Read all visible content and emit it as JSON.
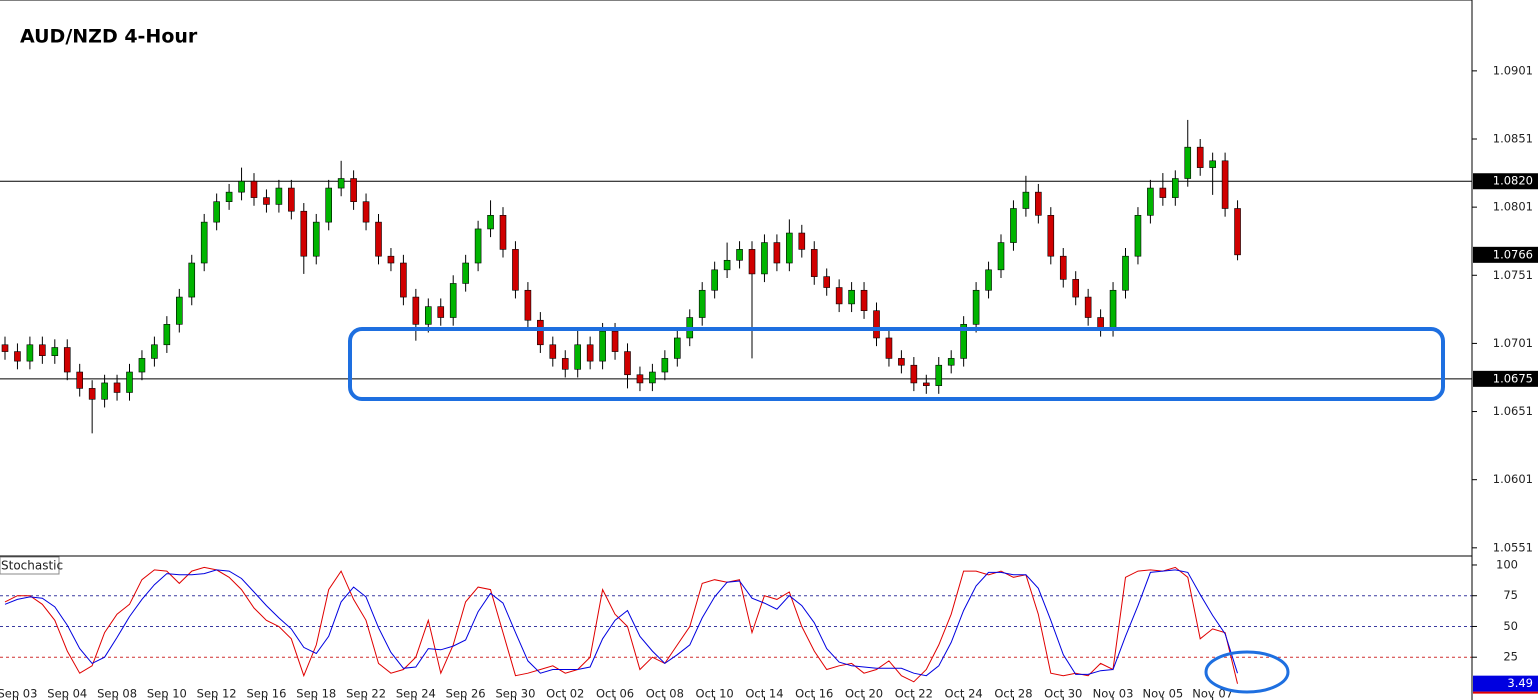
{
  "chart_data": [
    {
      "type": "candlestick",
      "title": "AUD/NZD 4-Hour",
      "categories": [
        null,
        "Sep 03",
        null,
        null,
        null,
        "Sep 04",
        null,
        null,
        null,
        "Sep 08",
        null,
        null,
        null,
        "Sep 10",
        null,
        null,
        null,
        "Sep 12",
        null,
        null,
        null,
        "Sep 16",
        null,
        null,
        null,
        "Sep 18",
        null,
        null,
        null,
        "Sep 22",
        null,
        null,
        null,
        "Sep 24",
        null,
        null,
        null,
        "Sep 26",
        null,
        null,
        null,
        "Sep 30",
        null,
        null,
        null,
        "Oct 02",
        null,
        null,
        null,
        "Oct 06",
        null,
        null,
        null,
        "Oct 08",
        null,
        null,
        null,
        "Oct 10",
        null,
        null,
        null,
        "Oct 14",
        null,
        null,
        null,
        "Oct 16",
        null,
        null,
        null,
        "Oct 20",
        null,
        null,
        null,
        "Oct 22",
        null,
        null,
        null,
        "Oct 24",
        null,
        null,
        null,
        "Oct 28",
        null,
        null,
        null,
        "Oct 30",
        null,
        null,
        null,
        "Nov 03",
        null,
        null,
        null,
        "Nov 05",
        null,
        null,
        null,
        "Nov 07",
        null,
        null
      ],
      "open": [
        1.07,
        1.0695,
        1.0688,
        1.07,
        1.0692,
        1.0698,
        1.068,
        1.0668,
        1.066,
        1.0672,
        1.0665,
        1.068,
        1.069,
        1.07,
        1.0715,
        1.0735,
        1.076,
        1.079,
        1.0805,
        1.0812,
        1.082,
        1.0808,
        1.0803,
        1.0815,
        1.0798,
        1.0765,
        1.079,
        1.0815,
        1.0822,
        1.0805,
        1.079,
        1.0765,
        1.076,
        1.0735,
        1.0715,
        1.0728,
        1.072,
        1.0745,
        1.076,
        1.0785,
        1.0795,
        1.077,
        1.074,
        1.0718,
        1.07,
        1.069,
        1.0682,
        1.07,
        1.0688,
        1.071,
        1.0695,
        1.0678,
        1.0672,
        1.068,
        1.069,
        1.0705,
        1.072,
        1.074,
        1.0755,
        1.0762,
        1.077,
        1.0752,
        1.0775,
        1.076,
        1.0782,
        1.077,
        1.075,
        1.0742,
        1.073,
        1.074,
        1.0725,
        1.0705,
        1.069,
        1.0685,
        1.0672,
        1.067,
        1.0685,
        1.069,
        1.0715,
        1.074,
        1.0755,
        1.0775,
        1.08,
        1.0812,
        1.0795,
        1.0765,
        1.0748,
        1.0735,
        1.072,
        1.0712,
        1.074,
        1.0765,
        1.0795,
        1.0815,
        1.0808,
        1.0822,
        1.0845,
        1.083,
        1.0835,
        1.08
      ],
      "high": [
        1.0706,
        1.0701,
        1.0706,
        1.0706,
        1.0704,
        1.0704,
        1.0686,
        1.0674,
        1.0678,
        1.0678,
        1.0686,
        1.0696,
        1.0706,
        1.0721,
        1.0741,
        1.0766,
        1.0796,
        1.0811,
        1.0818,
        1.083,
        1.0826,
        1.0814,
        1.0821,
        1.0821,
        1.0804,
        1.0796,
        1.0821,
        1.0835,
        1.0828,
        1.0811,
        1.0796,
        1.0771,
        1.0766,
        1.0741,
        1.0734,
        1.0734,
        1.0751,
        1.0766,
        1.0791,
        1.0806,
        1.0801,
        1.0776,
        1.0746,
        1.0724,
        1.0706,
        1.0696,
        1.0712,
        1.0706,
        1.0716,
        1.0716,
        1.0701,
        1.0684,
        1.0686,
        1.0696,
        1.0711,
        1.0726,
        1.0746,
        1.0761,
        1.0775,
        1.0776,
        1.0776,
        1.0781,
        1.0781,
        1.0792,
        1.0788,
        1.0776,
        1.0756,
        1.0748,
        1.0746,
        1.0746,
        1.0731,
        1.0711,
        1.0696,
        1.0691,
        1.0678,
        1.0691,
        1.0696,
        1.0721,
        1.0746,
        1.0761,
        1.0781,
        1.0806,
        1.0824,
        1.0818,
        1.0801,
        1.0771,
        1.0754,
        1.0741,
        1.0726,
        1.0746,
        1.0771,
        1.0801,
        1.0821,
        1.0826,
        1.0828,
        1.0865,
        1.0851,
        1.0841,
        1.0841,
        1.0806
      ],
      "low": [
        1.0689,
        1.0682,
        1.0682,
        1.0686,
        1.0686,
        1.0674,
        1.0662,
        1.0635,
        1.0654,
        1.0659,
        1.0659,
        1.0674,
        1.0684,
        1.0694,
        1.0709,
        1.0729,
        1.0754,
        1.0784,
        1.0799,
        1.0806,
        1.0802,
        1.0797,
        1.0797,
        1.0792,
        1.0752,
        1.0759,
        1.0784,
        1.0809,
        1.0799,
        1.0784,
        1.0759,
        1.0754,
        1.0729,
        1.0703,
        1.0709,
        1.0714,
        1.0714,
        1.0739,
        1.0754,
        1.0779,
        1.0764,
        1.0734,
        1.0712,
        1.0694,
        1.0684,
        1.0676,
        1.0676,
        1.0682,
        1.0682,
        1.0689,
        1.0668,
        1.0666,
        1.0666,
        1.0674,
        1.0684,
        1.0699,
        1.0714,
        1.0734,
        1.0749,
        1.0756,
        1.069,
        1.0746,
        1.0754,
        1.0754,
        1.0764,
        1.0744,
        1.0736,
        1.0724,
        1.0724,
        1.0719,
        1.0699,
        1.0684,
        1.0679,
        1.0666,
        1.0664,
        1.0664,
        1.0679,
        1.0684,
        1.0709,
        1.0734,
        1.0749,
        1.0769,
        1.0794,
        1.0789,
        1.0759,
        1.0742,
        1.0729,
        1.0714,
        1.0706,
        1.0706,
        1.0734,
        1.0759,
        1.0789,
        1.0802,
        1.0802,
        1.0816,
        1.0824,
        1.081,
        1.0794,
        1.0762
      ],
      "close": [
        1.0695,
        1.0688,
        1.07,
        1.0692,
        1.0698,
        1.068,
        1.0668,
        1.066,
        1.0672,
        1.0665,
        1.068,
        1.069,
        1.07,
        1.0715,
        1.0735,
        1.076,
        1.079,
        1.0805,
        1.0812,
        1.082,
        1.0808,
        1.0803,
        1.0815,
        1.0798,
        1.0765,
        1.079,
        1.0815,
        1.0822,
        1.0805,
        1.079,
        1.0765,
        1.076,
        1.0735,
        1.0715,
        1.0728,
        1.072,
        1.0745,
        1.076,
        1.0785,
        1.0795,
        1.077,
        1.074,
        1.0718,
        1.07,
        1.069,
        1.0682,
        1.07,
        1.0688,
        1.071,
        1.0695,
        1.0678,
        1.0672,
        1.068,
        1.069,
        1.0705,
        1.072,
        1.074,
        1.0755,
        1.0762,
        1.077,
        1.0752,
        1.0775,
        1.076,
        1.0782,
        1.077,
        1.075,
        1.0742,
        1.073,
        1.074,
        1.0725,
        1.0705,
        1.069,
        1.0685,
        1.0672,
        1.067,
        1.0685,
        1.069,
        1.0715,
        1.074,
        1.0755,
        1.0775,
        1.08,
        1.0812,
        1.0795,
        1.0765,
        1.0748,
        1.0735,
        1.072,
        1.0712,
        1.074,
        1.0765,
        1.0795,
        1.0815,
        1.0808,
        1.0822,
        1.0845,
        1.083,
        1.0835,
        1.08,
        1.0766
      ],
      "up_color": "#00b400",
      "down_color": "#d00000",
      "ylim": [
        1.0545,
        1.0953
      ],
      "yticks": [
        1.0551,
        1.0601,
        1.0651,
        1.0701,
        1.0751,
        1.0801,
        1.0851,
        1.0901
      ],
      "levels": [
        {
          "value": 1.082,
          "label": "1.0820"
        },
        {
          "value": 1.0675,
          "label": "1.0675"
        }
      ],
      "last_price": 1.0766
    },
    {
      "type": "line",
      "title": "Stochastic",
      "series": [
        {
          "color": "#e00000",
          "values": [
            70,
            75,
            75,
            68,
            55,
            30,
            12,
            18,
            45,
            60,
            68,
            88,
            96,
            95,
            85,
            95,
            98,
            96,
            90,
            80,
            65,
            55,
            50,
            40,
            10,
            35,
            80,
            95,
            72,
            55,
            20,
            12,
            15,
            25,
            55,
            12,
            35,
            70,
            82,
            80,
            45,
            10,
            12,
            15,
            18,
            12,
            15,
            25,
            80,
            60,
            50,
            15,
            25,
            20,
            35,
            50,
            85,
            88,
            86,
            88,
            45,
            75,
            72,
            78,
            50,
            30,
            15,
            18,
            20,
            12,
            15,
            22,
            10,
            5,
            15,
            35,
            60,
            95,
            95,
            92,
            95,
            90,
            92,
            60,
            12,
            10,
            12,
            10,
            20,
            15,
            90,
            95,
            96,
            95,
            98,
            90,
            40,
            48,
            45,
            3.49
          ]
        },
        {
          "color": "#0000e0",
          "values": [
            68,
            72,
            74,
            73,
            66,
            51,
            32,
            20,
            25,
            41,
            58,
            72,
            84,
            93,
            92,
            92,
            93,
            96,
            95,
            89,
            78,
            67,
            57,
            48,
            33,
            28,
            42,
            70,
            82,
            74,
            49,
            29,
            16,
            17,
            32,
            31,
            34,
            39,
            62,
            77,
            69,
            45,
            22,
            12,
            15,
            15,
            15,
            17,
            40,
            55,
            63,
            42,
            30,
            20,
            27,
            35,
            57,
            74,
            86,
            87,
            73,
            69,
            64,
            75,
            67,
            53,
            32,
            21,
            18,
            17,
            16,
            16,
            16,
            12,
            10,
            18,
            37,
            63,
            83,
            94,
            94,
            92,
            92,
            81,
            55,
            27,
            11,
            11,
            14,
            15,
            42,
            67,
            94,
            95,
            96,
            94,
            76,
            59,
            44,
            12
          ]
        }
      ],
      "ylim": [
        -9.8,
        107.3
      ],
      "yticks": [
        100,
        75,
        50,
        25
      ],
      "levels": [
        75,
        50,
        25
      ],
      "last_value": 3.49
    }
  ]
}
